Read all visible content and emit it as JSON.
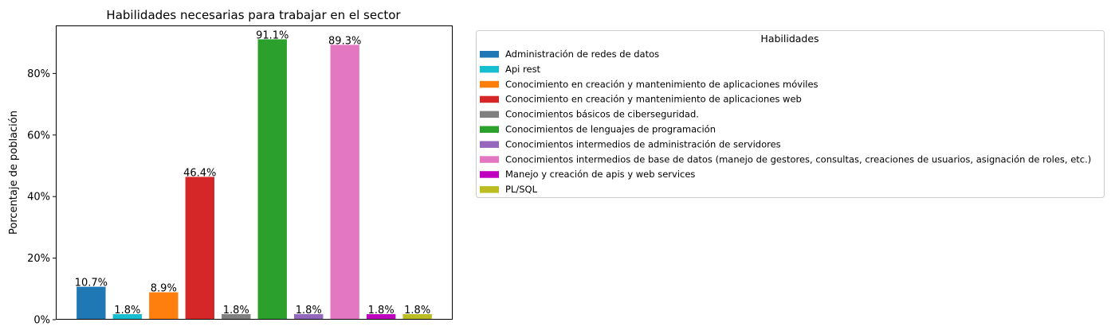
{
  "chart_data": {
    "type": "bar",
    "title": "Habilidades necesarias para trabajar en el sector",
    "xlabel": "",
    "ylabel": "Porcentaje de población",
    "ylim": [
      0,
      95.6
    ],
    "y_ticks": [
      0,
      20,
      40,
      60,
      80
    ],
    "y_tick_labels": [
      "0%",
      "20%",
      "40%",
      "60%",
      "80%"
    ],
    "grid": false,
    "legend_title": "Habilidades",
    "legend_position": "top-right outside",
    "categories": [
      "Administración de redes de datos",
      "Api rest",
      "Conocimiento en creación y mantenimiento de aplicaciones móviles",
      "Conocimiento en creación y mantenimiento de aplicaciones web",
      "Conocimientos básicos de ciberseguridad.",
      "Conocimientos de lenguajes de programación",
      "Conocimientos intermedios de administración de servidores",
      "Conocimientos intermedios de base de datos (manejo de gestores, consultas, creaciones de usuarios, asignación de roles, etc.)",
      "Manejo y creación de apis y web services",
      "PL/SQL"
    ],
    "values": [
      10.7,
      1.8,
      8.9,
      46.4,
      1.8,
      91.1,
      1.8,
      89.3,
      1.8,
      1.8
    ],
    "value_labels": [
      "10.7%",
      "1.8%",
      "8.9%",
      "46.4%",
      "1.8%",
      "91.1%",
      "1.8%",
      "89.3%",
      "1.8%",
      "1.8%"
    ],
    "colors": [
      "#1f77b4",
      "#17becf",
      "#ff7f0e",
      "#d62728",
      "#7f7f7f",
      "#2ca02c",
      "#9467bd",
      "#e377c2",
      "#bf00bf",
      "#bcbd22"
    ]
  }
}
